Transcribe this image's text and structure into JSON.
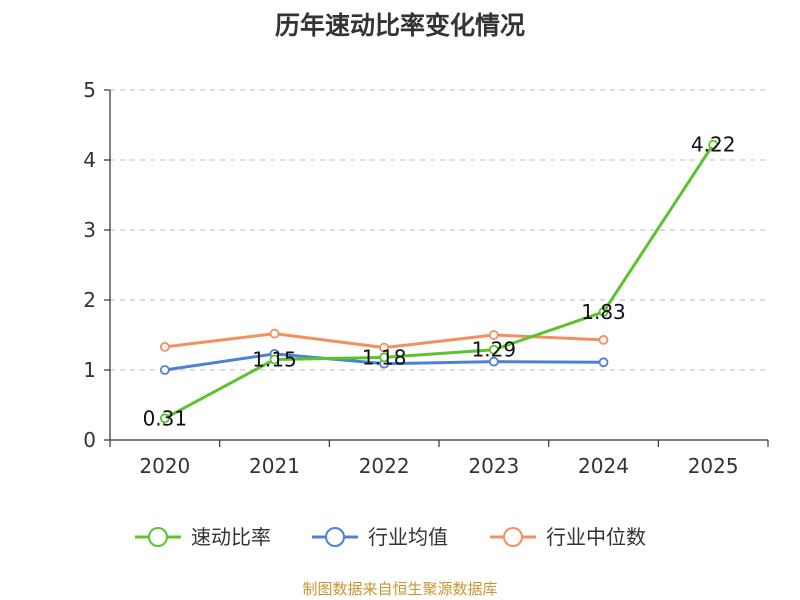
{
  "chart_data": {
    "type": "line",
    "title": "历年速动比率变化情况",
    "categories": [
      "2020",
      "2021",
      "2022",
      "2023",
      "2024",
      "2025"
    ],
    "ylim": [
      0,
      5
    ],
    "yticks": [
      0,
      1,
      2,
      3,
      4,
      5
    ],
    "grid": true,
    "legend_position": "bottom",
    "series": [
      {
        "name": "速动比率",
        "color": "#5cc22f",
        "values": [
          0.31,
          1.15,
          1.18,
          1.29,
          1.83,
          4.22
        ],
        "labels": [
          "0.31",
          "1.15",
          "1.18",
          "1.29",
          "1.83",
          "4.22"
        ],
        "show_labels": true,
        "markers": true
      },
      {
        "name": "行业均值",
        "color": "#4f80d8",
        "values": [
          1.0,
          1.23,
          1.09,
          1.12,
          1.11,
          null
        ],
        "show_labels": false,
        "markers": true
      },
      {
        "name": "行业中位数",
        "color": "#f39060",
        "values": [
          1.33,
          1.52,
          1.32,
          1.5,
          1.43,
          null
        ],
        "show_labels": false,
        "markers": true
      }
    ]
  },
  "footer": {
    "source": "制图数据来自恒生聚源数据库"
  }
}
